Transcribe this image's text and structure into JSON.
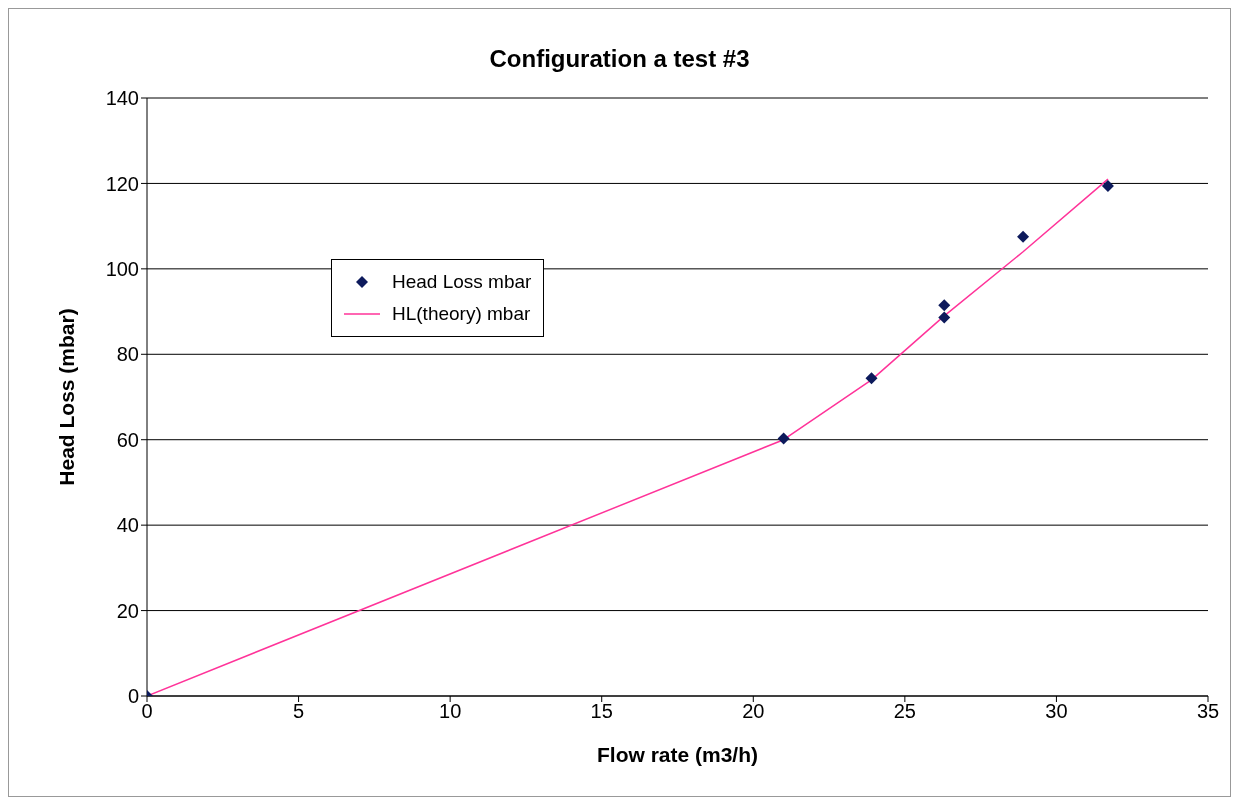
{
  "chart_data": {
    "type": "scatter",
    "title": "Configuration a test #3",
    "xlabel": "Flow rate (m3/h)",
    "ylabel": "Head Loss (mbar)",
    "xlim": [
      0,
      35
    ],
    "xticks": [
      0,
      5,
      10,
      15,
      20,
      25,
      30,
      35
    ],
    "ylim": [
      0,
      140
    ],
    "yticks": [
      0,
      20,
      40,
      60,
      80,
      100,
      120,
      140
    ],
    "grid": "y",
    "legend": "left",
    "series": [
      {
        "name": "Head Loss mbar",
        "marker": "diamond",
        "color": "#0d1a5c",
        "x": [
          0,
          21,
          23.9,
          26.3,
          26.3,
          28.9,
          31.7
        ],
        "values": [
          0,
          60.3,
          74.4,
          91.5,
          88.6,
          107.5,
          119.4
        ]
      },
      {
        "name": "HL(theory) mbar",
        "type": "line",
        "marker": "none",
        "color": "#ff3399",
        "x": [
          0,
          21,
          23.9,
          26.3,
          28.9,
          31.7
        ],
        "values": [
          0,
          60,
          74,
          89,
          104,
          121
        ]
      }
    ]
  }
}
